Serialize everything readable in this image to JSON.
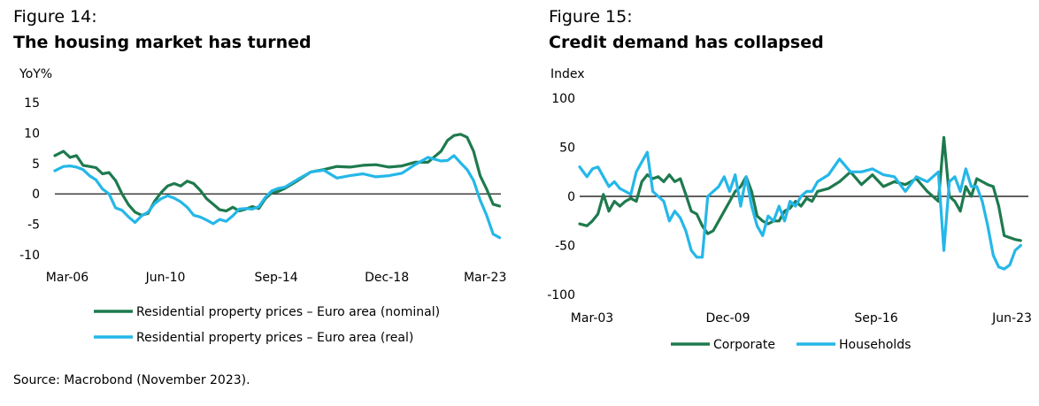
{
  "source": "Source: Macrobond (November 2023).",
  "chart_data": [
    {
      "type": "line",
      "figure_label": "Figure 14:",
      "title": "The housing market has turned",
      "unit_label": "YoY%",
      "ylim": [
        -10,
        15
      ],
      "yticks": [
        15,
        10,
        5,
        0,
        -5,
        -10
      ],
      "ytick_labels": [
        "15",
        "10",
        "5",
        "0",
        "-5",
        "-10"
      ],
      "xlim": [
        2006.17,
        2023.3
      ],
      "xticks": [
        2006.17,
        2010.42,
        2014.67,
        2018.92,
        2023.17
      ],
      "xtick_labels": [
        "Mar-06",
        "Jun-10",
        "Sep-14",
        "Dec-18",
        "Mar-23"
      ],
      "zero_line": true,
      "grid": false,
      "legend_placement": "bottom",
      "series": [
        {
          "name": "Residential property prices – Euro area (nominal)",
          "color": "#1e7a4e",
          "x": [
            2006.17,
            2006.5,
            2006.75,
            2007,
            2007.25,
            2007.5,
            2007.75,
            2008,
            2008.25,
            2008.5,
            2008.75,
            2009,
            2009.25,
            2009.5,
            2009.75,
            2010,
            2010.25,
            2010.5,
            2010.75,
            2011,
            2011.25,
            2011.5,
            2011.75,
            2012,
            2012.25,
            2012.5,
            2012.75,
            2013,
            2013.25,
            2013.5,
            2013.75,
            2014,
            2014.25,
            2014.5,
            2014.75,
            2015,
            2015.5,
            2016,
            2016.5,
            2017,
            2017.5,
            2018,
            2018.5,
            2019,
            2019.5,
            2020,
            2020.5,
            2021,
            2021.25,
            2021.5,
            2021.75,
            2022,
            2022.25,
            2022.5,
            2022.75,
            2023,
            2023.25
          ],
          "values": [
            6.3,
            7,
            6,
            6.3,
            4.7,
            4.5,
            4.3,
            3.3,
            3.5,
            2.2,
            0,
            -1.8,
            -3,
            -3.5,
            -3.2,
            -1.2,
            0.2,
            1.3,
            1.7,
            1.3,
            2.1,
            1.7,
            0.6,
            -0.8,
            -1.7,
            -2.6,
            -2.8,
            -2.2,
            -2.8,
            -2.5,
            -2.1,
            -2.4,
            -0.8,
            0.2,
            0.4,
            0.9,
            2.2,
            3.6,
            4,
            4.5,
            4.4,
            4.7,
            4.8,
            4.4,
            4.6,
            5.2,
            5.2,
            7,
            8.8,
            9.6,
            9.8,
            9.3,
            7,
            3,
            0.8,
            -1.7,
            -2
          ]
        },
        {
          "name": "Residential property prices – Euro area (real)",
          "color": "#25b7e8",
          "x": [
            2006.17,
            2006.5,
            2006.75,
            2007,
            2007.25,
            2007.5,
            2007.75,
            2008,
            2008.25,
            2008.5,
            2008.75,
            2009,
            2009.25,
            2009.5,
            2009.75,
            2010,
            2010.25,
            2010.5,
            2010.75,
            2011,
            2011.25,
            2011.5,
            2011.75,
            2012,
            2012.25,
            2012.5,
            2012.75,
            2013,
            2013.25,
            2013.5,
            2013.75,
            2014,
            2014.25,
            2014.5,
            2014.75,
            2015,
            2015.5,
            2016,
            2016.5,
            2017,
            2017.5,
            2018,
            2018.5,
            2019,
            2019.5,
            2020,
            2020.5,
            2021,
            2021.25,
            2021.5,
            2021.75,
            2022,
            2022.25,
            2022.5,
            2022.75,
            2023,
            2023.25
          ],
          "values": [
            3.8,
            4.5,
            4.6,
            4.4,
            4,
            3,
            2.3,
            0.8,
            0,
            -2.3,
            -2.7,
            -3.8,
            -4.7,
            -3.6,
            -3,
            -1.6,
            -0.8,
            -0.3,
            -0.7,
            -1.3,
            -2.2,
            -3.5,
            -3.8,
            -4.3,
            -4.9,
            -4.2,
            -4.5,
            -3.6,
            -2.5,
            -2.4,
            -2.5,
            -2.1,
            -0.6,
            0.5,
            0.9,
            1.1,
            2.4,
            3.6,
            3.9,
            2.6,
            3,
            3.3,
            2.8,
            3,
            3.4,
            4.8,
            6,
            5.4,
            5.5,
            6.3,
            5.1,
            4,
            2.2,
            -1,
            -3.5,
            -6.6,
            -7.2
          ]
        }
      ]
    },
    {
      "type": "line",
      "figure_label": "Figure 15:",
      "title": "Credit demand has collapsed",
      "unit_label": "Index",
      "ylim": [
        -100,
        100
      ],
      "yticks": [
        100,
        50,
        0,
        -50,
        -100
      ],
      "ytick_labels": [
        "100",
        "50",
        "0",
        "-50",
        "-100"
      ],
      "xlim": [
        2003.17,
        2023.6
      ],
      "xticks": [
        2003.17,
        2009.92,
        2016.67,
        2023.42
      ],
      "xtick_labels": [
        "Mar-03",
        "Dec-09",
        "Sep-16",
        "Jun-23"
      ],
      "zero_line": true,
      "grid": false,
      "legend_placement": "bottom",
      "series": [
        {
          "name": "Corporate",
          "color": "#1e7a4e",
          "x": [
            2003.17,
            2003.5,
            2003.75,
            2004,
            2004.25,
            2004.5,
            2004.75,
            2005,
            2005.25,
            2005.5,
            2005.75,
            2006,
            2006.25,
            2006.5,
            2006.75,
            2007,
            2007.25,
            2007.5,
            2007.75,
            2008,
            2008.25,
            2008.5,
            2008.75,
            2009,
            2009.25,
            2009.5,
            2009.75,
            2010,
            2010.25,
            2010.5,
            2010.75,
            2011,
            2011.25,
            2011.5,
            2011.75,
            2012,
            2012.25,
            2012.5,
            2012.75,
            2013,
            2013.25,
            2013.5,
            2013.75,
            2014,
            2014.5,
            2015,
            2015.5,
            2016,
            2016.5,
            2017,
            2017.5,
            2018,
            2018.5,
            2019,
            2019.5,
            2019.75,
            2020,
            2020.25,
            2020.5,
            2020.75,
            2021,
            2021.25,
            2021.5,
            2021.75,
            2022,
            2022.25,
            2022.5,
            2022.75,
            2023,
            2023.25
          ],
          "values": [
            -28,
            -30,
            -25,
            -18,
            2,
            -15,
            -5,
            -10,
            -5,
            -2,
            -5,
            15,
            22,
            18,
            20,
            15,
            22,
            15,
            18,
            2,
            -15,
            -18,
            -30,
            -38,
            -35,
            -25,
            -15,
            -5,
            5,
            10,
            20,
            5,
            -20,
            -25,
            -28,
            -25,
            -25,
            -15,
            -12,
            -5,
            -10,
            -2,
            -5,
            5,
            8,
            15,
            25,
            12,
            22,
            10,
            15,
            12,
            18,
            5,
            -5,
            60,
            0,
            -5,
            -15,
            10,
            0,
            18,
            15,
            12,
            10,
            -10,
            -40,
            -42,
            -44,
            -45
          ]
        },
        {
          "name": "Households",
          "color": "#25b7e8",
          "x": [
            2003.17,
            2003.5,
            2003.75,
            2004,
            2004.25,
            2004.5,
            2004.75,
            2005,
            2005.25,
            2005.5,
            2005.75,
            2006,
            2006.25,
            2006.5,
            2006.75,
            2007,
            2007.25,
            2007.5,
            2007.75,
            2008,
            2008.25,
            2008.5,
            2008.75,
            2009,
            2009.25,
            2009.5,
            2009.75,
            2010,
            2010.25,
            2010.5,
            2010.75,
            2011,
            2011.25,
            2011.5,
            2011.75,
            2012,
            2012.25,
            2012.5,
            2012.75,
            2013,
            2013.25,
            2013.5,
            2013.75,
            2014,
            2014.5,
            2015,
            2015.5,
            2016,
            2016.5,
            2017,
            2017.5,
            2018,
            2018.5,
            2019,
            2019.5,
            2019.75,
            2020,
            2020.25,
            2020.5,
            2020.75,
            2021,
            2021.25,
            2021.5,
            2021.75,
            2022,
            2022.25,
            2022.5,
            2022.75,
            2023,
            2023.25
          ],
          "values": [
            30,
            20,
            28,
            30,
            20,
            10,
            15,
            8,
            5,
            2,
            25,
            35,
            45,
            5,
            0,
            -5,
            -25,
            -15,
            -22,
            -35,
            -55,
            -62,
            -62,
            0,
            5,
            10,
            20,
            5,
            22,
            -10,
            20,
            -10,
            -30,
            -40,
            -20,
            -25,
            -10,
            -25,
            -5,
            -10,
            0,
            5,
            5,
            15,
            22,
            38,
            25,
            25,
            28,
            22,
            20,
            5,
            20,
            15,
            25,
            -55,
            15,
            20,
            5,
            28,
            10,
            10,
            -5,
            -30,
            -60,
            -72,
            -74,
            -70,
            -55,
            -50
          ]
        }
      ]
    }
  ]
}
